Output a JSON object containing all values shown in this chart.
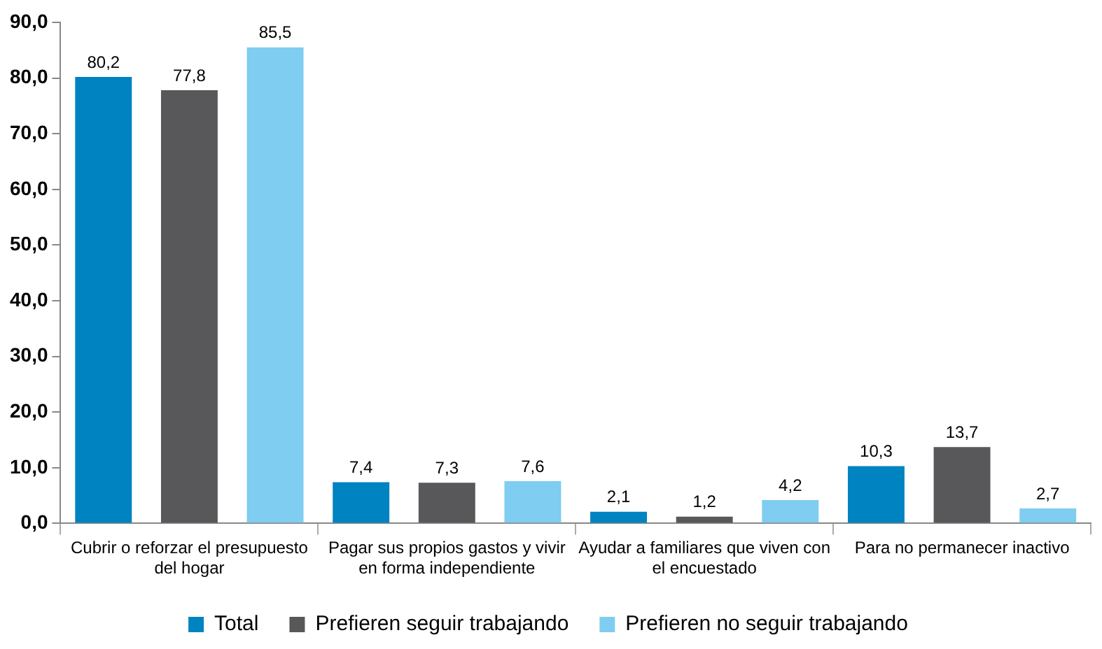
{
  "chart_data": {
    "type": "bar",
    "categories": [
      "Cubrir o reforzar el presupuesto del hogar",
      "Pagar sus propios gastos y vivir en forma independiente",
      "Ayudar a familiares que viven con el encuestado",
      "Para no permanecer inactivo"
    ],
    "series": [
      {
        "name": "Total",
        "color": "#0083c1",
        "values": [
          80.2,
          7.4,
          2.1,
          10.3
        ],
        "value_labels": [
          "80,2",
          "7,4",
          "2,1",
          "10,3"
        ]
      },
      {
        "name": "Prefieren seguir trabajando",
        "color": "#58585a",
        "values": [
          77.8,
          7.3,
          1.2,
          13.7
        ],
        "value_labels": [
          "77,8",
          "7,3",
          "1,2",
          "13,7"
        ]
      },
      {
        "name": "Prefieren no seguir trabajando",
        "color": "#7fcdf0",
        "values": [
          85.5,
          7.6,
          4.2,
          2.7
        ],
        "value_labels": [
          "85,5",
          "7,6",
          "4,2",
          "2,7"
        ]
      }
    ],
    "ylim": [
      0,
      90
    ],
    "yticks": [
      {
        "value": 0,
        "label": "0,0"
      },
      {
        "value": 10,
        "label": "10,0"
      },
      {
        "value": 20,
        "label": "20,0"
      },
      {
        "value": 30,
        "label": "30,0"
      },
      {
        "value": 40,
        "label": "40,0"
      },
      {
        "value": 50,
        "label": "50,0"
      },
      {
        "value": 60,
        "label": "60,0"
      },
      {
        "value": 70,
        "label": "70,0"
      },
      {
        "value": 80,
        "label": "80,0"
      },
      {
        "value": 90,
        "label": "90,0"
      }
    ],
    "grid": false,
    "legend": "bottom"
  }
}
